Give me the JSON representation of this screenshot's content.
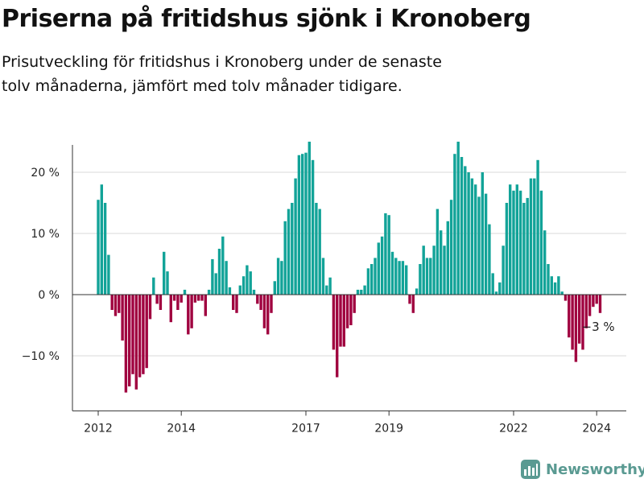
{
  "title": "Priserna på fritidshus sjönk i Kronoberg",
  "subtitle": "Prisutveckling för fritidshus i Kronoberg under de senaste tolv månaderna, jämfört med tolv månader tidigare.",
  "brand": {
    "name": "Newsworthy",
    "icon": "newsworthy-logo-icon",
    "color": "#5a9a92"
  },
  "colors": {
    "positive": "#12a398",
    "negative": "#a0003f",
    "grid": "#d9d9d9",
    "axis": "#333333",
    "text": "#222222"
  },
  "chart_data": {
    "type": "bar",
    "x_start": "2012-01",
    "frequency": "monthly",
    "unit": "%",
    "ylim": [
      -19,
      25
    ],
    "yticks": [
      20,
      10,
      0,
      -10
    ],
    "ytick_labels": [
      "20 %",
      "10 %",
      "0 %",
      "−10 %"
    ],
    "xticks": [
      {
        "date": "2012-01",
        "label": "2012"
      },
      {
        "date": "2014-01",
        "label": "2014"
      },
      {
        "date": "2017-01",
        "label": "2017"
      },
      {
        "date": "2019-01",
        "label": "2019"
      },
      {
        "date": "2022-01",
        "label": "2022"
      },
      {
        "date": "2024-01",
        "label": "2024"
      }
    ],
    "last_label": "−3 %",
    "grid": true,
    "values": [
      15.5,
      18,
      15,
      6.5,
      -2.5,
      -3.5,
      -3,
      -7.5,
      -16,
      -15,
      -13,
      -15.5,
      -13.5,
      -13,
      -12,
      -4,
      2.8,
      -1.5,
      -2.5,
      7,
      3.8,
      -4.5,
      -1,
      -2.5,
      -1.3,
      0.8,
      -6.5,
      -5.5,
      -1.3,
      -1,
      -1,
      -3.5,
      0.8,
      5.8,
      3.5,
      7.5,
      9.5,
      5.5,
      1.2,
      -2.5,
      -3,
      1.5,
      3,
      4.8,
      3.8,
      0.8,
      -1.5,
      -2.5,
      -5.5,
      -6.5,
      -3,
      2.2,
      6,
      5.5,
      12,
      14,
      15,
      19,
      22.8,
      23,
      23.2,
      25,
      22,
      15,
      14,
      6,
      1.5,
      2.8,
      -9,
      -13.5,
      -8.5,
      -8.5,
      -5.5,
      -5,
      -3,
      0.8,
      0.8,
      1.5,
      4.3,
      5,
      6,
      8.5,
      9.5,
      13.3,
      13,
      7,
      6,
      5.5,
      5.5,
      4.8,
      -1.5,
      -3,
      1,
      5,
      8,
      6,
      6,
      8,
      14,
      10.5,
      8,
      12,
      15.5,
      23,
      25,
      22.5,
      21,
      20,
      19,
      18,
      16,
      20,
      16.5,
      11.5,
      3.5,
      0.5,
      2,
      8,
      15,
      18,
      17,
      18,
      17,
      15,
      15.8,
      19,
      19,
      22,
      17,
      10.5,
      5,
      3,
      2,
      3,
      0.5,
      -1,
      -7,
      -9,
      -11,
      -8,
      -9,
      -5.5,
      -3.5,
      -2,
      -1.5,
      -3
    ]
  }
}
